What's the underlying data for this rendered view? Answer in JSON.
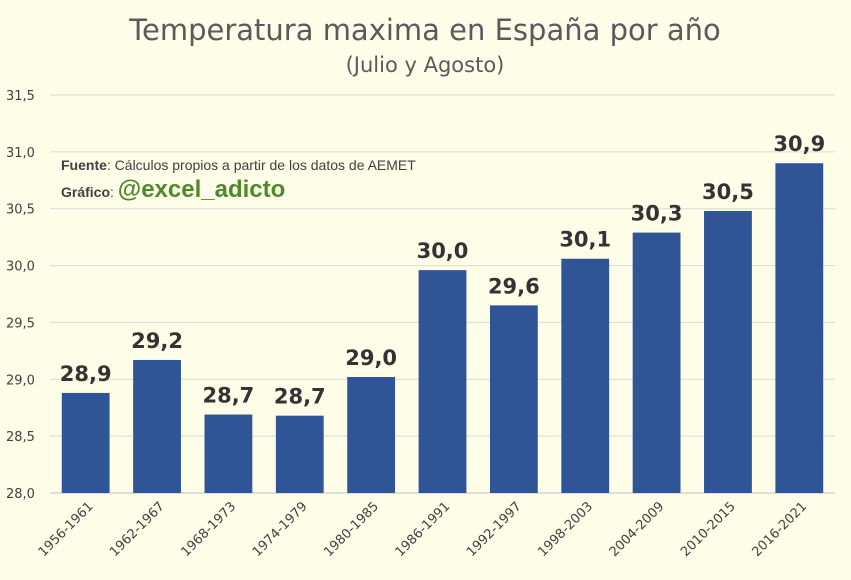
{
  "chart_data": {
    "type": "bar",
    "title": "Temperatura maxima en España por año",
    "subtitle": "(Julio y Agosto)",
    "xlabel": "",
    "ylabel": "",
    "categories": [
      "1956-1961",
      "1962-1967",
      "1968-1973",
      "1974-1979",
      "1980-1985",
      "1986-1991",
      "1992-1997",
      "1998-2003",
      "2004-2009",
      "2010-2015",
      "2016-2021"
    ],
    "values": [
      28.88,
      29.17,
      28.69,
      28.68,
      29.02,
      29.96,
      29.65,
      30.06,
      30.29,
      30.48,
      30.9
    ],
    "data_labels": [
      "28,9",
      "29,2",
      "28,7",
      "28,7",
      "29,0",
      "30,0",
      "29,6",
      "30,1",
      "30,3",
      "30,5",
      "30,9"
    ],
    "ylim": [
      28.0,
      31.5
    ],
    "yticks": [
      28.0,
      28.5,
      29.0,
      29.5,
      30.0,
      30.5,
      31.0,
      31.5
    ],
    "ytick_labels": [
      "28,0",
      "28,5",
      "29,0",
      "29,5",
      "30,0",
      "30,5",
      "31,0",
      "31,5"
    ],
    "bar_color": "#2f5597",
    "grid": true
  },
  "annotation": {
    "source_label": "Fuente",
    "source_text": ": Cálculos propios a partir de los datos de AEMET",
    "graph_label": "Gráfico",
    "graph_sep": ": ",
    "handle": "@excel_adicto"
  }
}
